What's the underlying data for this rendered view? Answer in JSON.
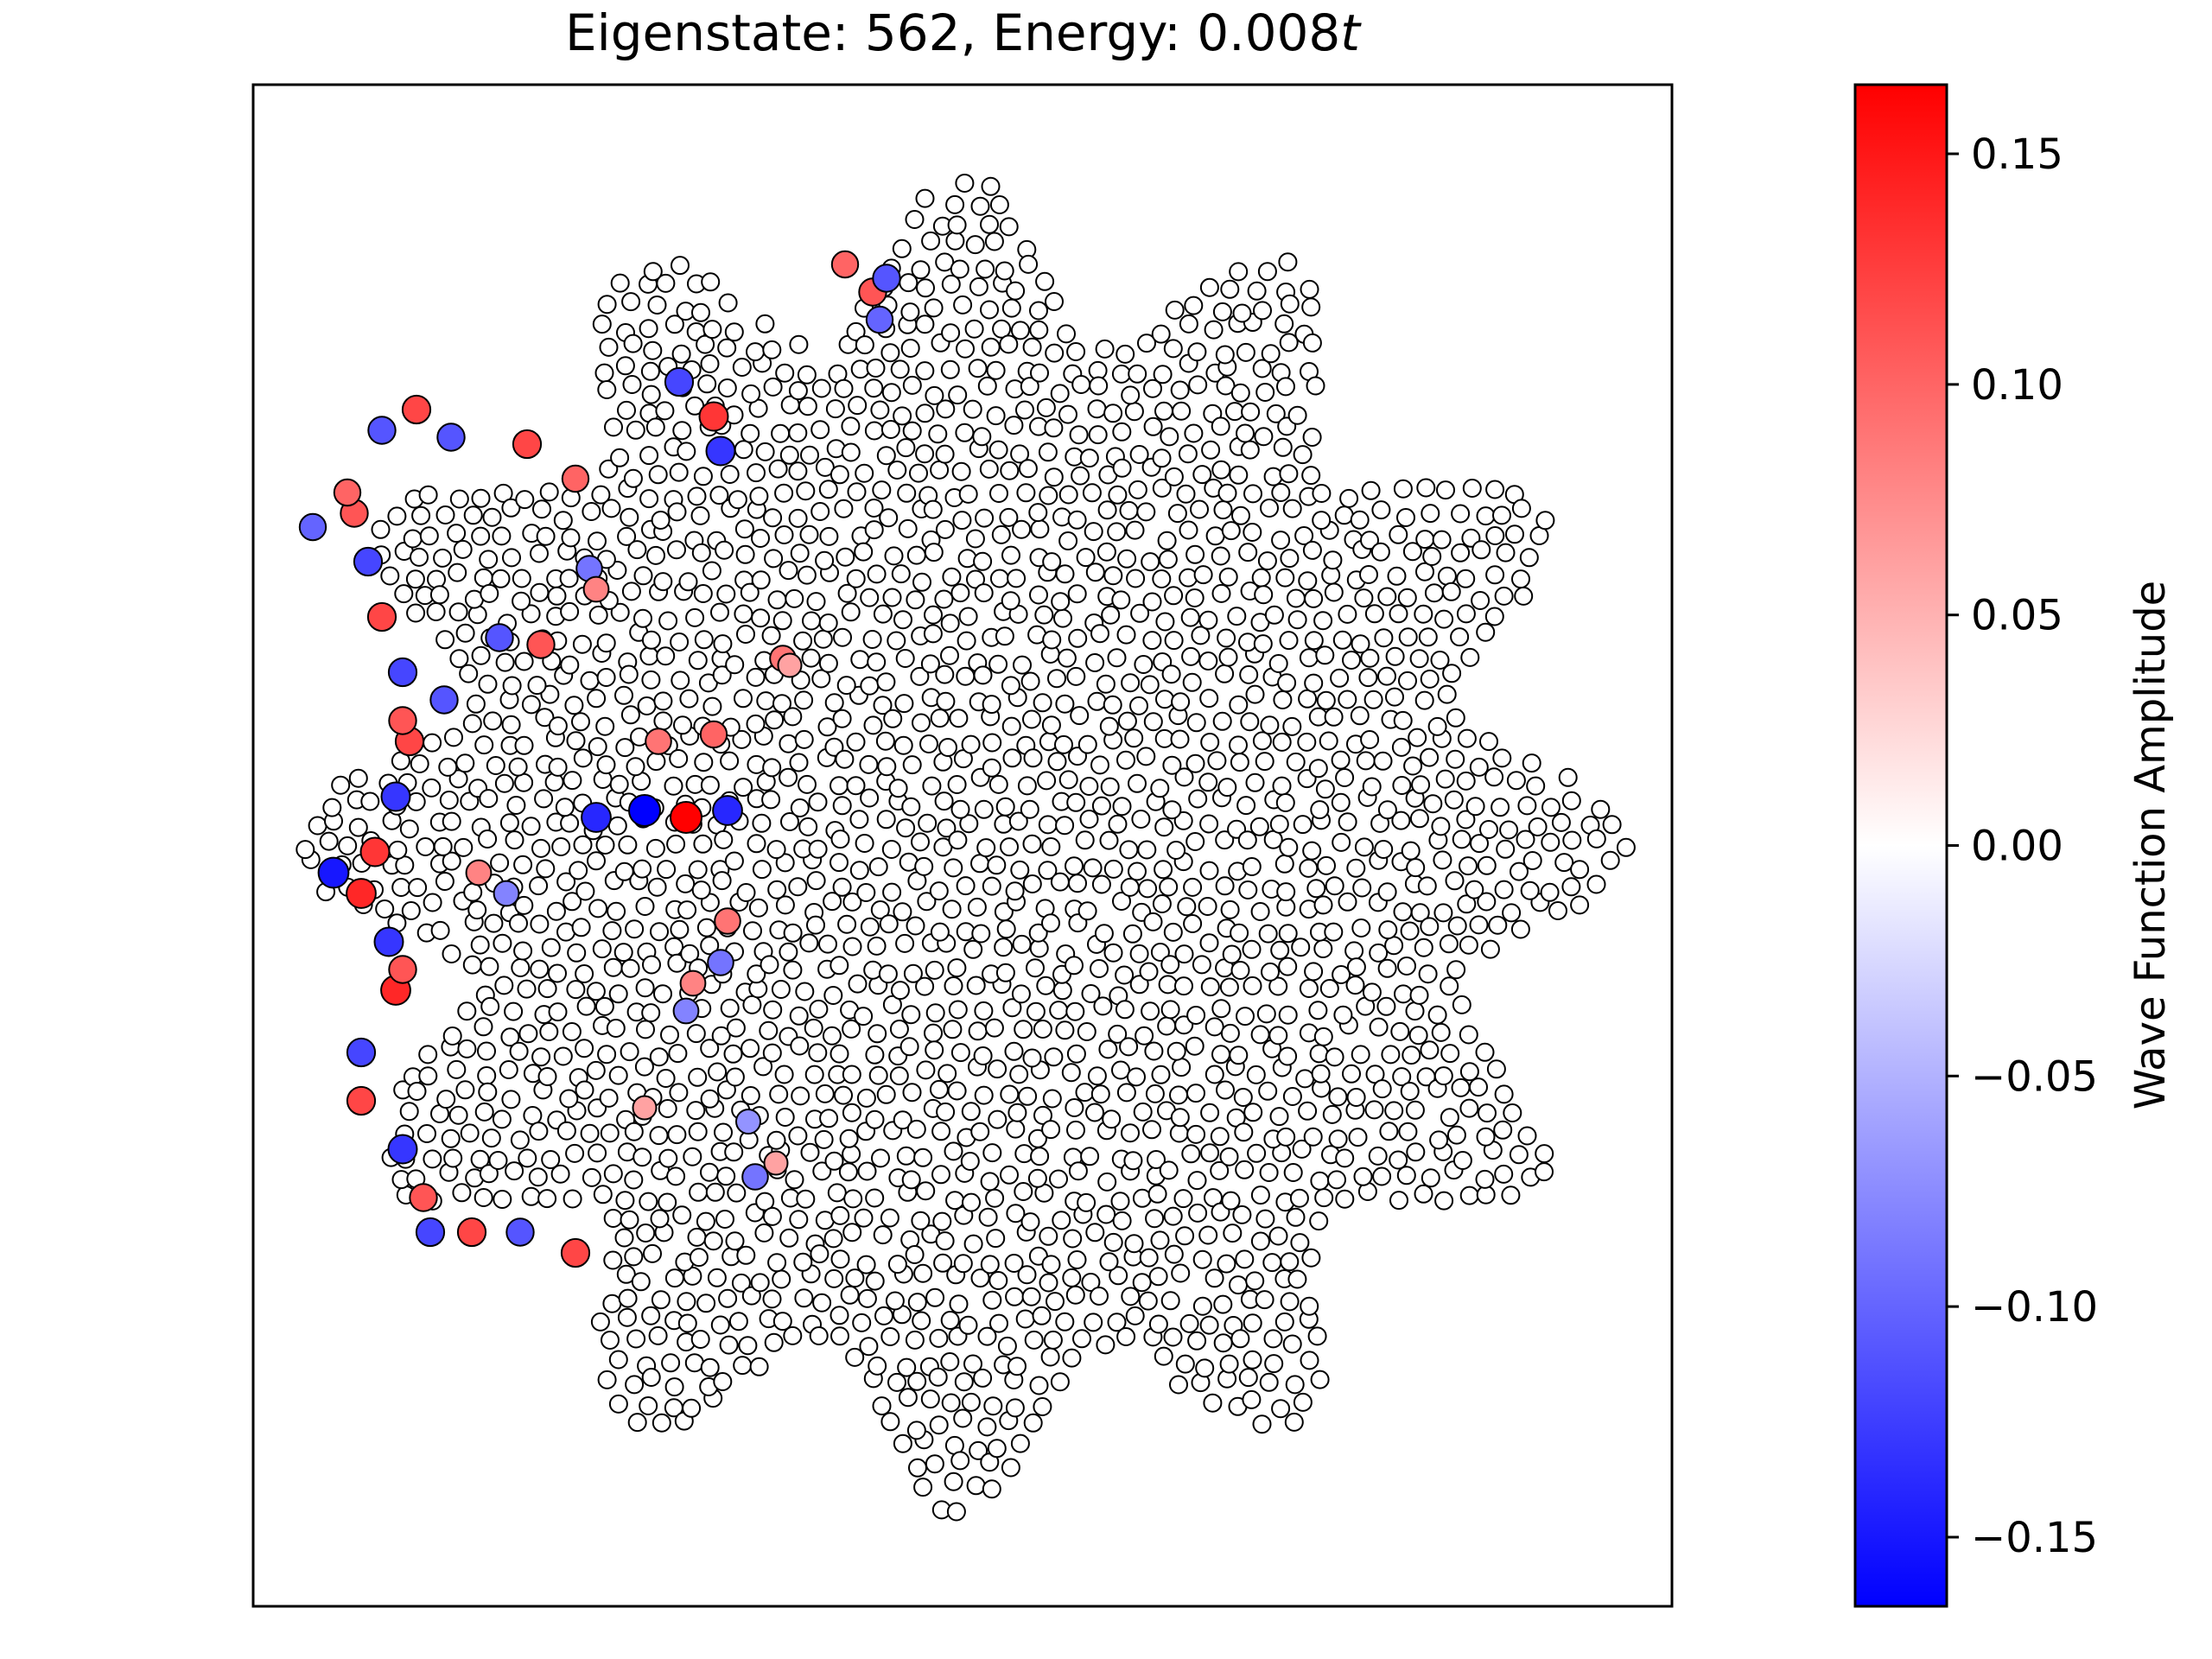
{
  "chart_data": {
    "type": "scatter",
    "title_prefix": "Eigenstate: 562, Energy: 0.008",
    "title_suffix": "t",
    "axes": {
      "xticks": "none",
      "yticks": "none",
      "grid": false,
      "frame": true
    },
    "lattice": "quasicrystal ring lattice (12-fold outline)",
    "colormap": {
      "name": "bwr",
      "low": "#0000ff",
      "mid": "#ffffff",
      "high": "#ff0000"
    },
    "colorbar": {
      "label": "Wave Function Amplitude",
      "vmin": -0.165,
      "vmax": 0.165,
      "ticks": [
        0.15,
        0.1,
        0.05,
        0.0,
        -0.05,
        -0.1,
        -0.15
      ],
      "tick_labels": [
        "0.15",
        "0.10",
        "0.05",
        "0.00",
        "−0.05",
        "−0.10",
        "−0.15"
      ]
    },
    "highlighted_sites": [
      {
        "x": -0.46,
        "y": 0.05,
        "amplitude": -0.165
      },
      {
        "x": -0.4,
        "y": 0.04,
        "amplitude": 0.165
      },
      {
        "x": -0.34,
        "y": 0.05,
        "amplitude": -0.14
      },
      {
        "x": -0.53,
        "y": 0.04,
        "amplitude": -0.14
      },
      {
        "x": -0.91,
        "y": -0.04,
        "amplitude": -0.15
      },
      {
        "x": -0.85,
        "y": -0.01,
        "amplitude": 0.13
      },
      {
        "x": -0.87,
        "y": -0.07,
        "amplitude": 0.14
      },
      {
        "x": -0.83,
        "y": -0.14,
        "amplitude": -0.13
      },
      {
        "x": -0.82,
        "y": -0.21,
        "amplitude": 0.14
      },
      {
        "x": -0.81,
        "y": -0.18,
        "amplitude": 0.11
      },
      {
        "x": -0.87,
        "y": -0.3,
        "amplitude": -0.12
      },
      {
        "x": -0.87,
        "y": -0.37,
        "amplitude": 0.12
      },
      {
        "x": -0.81,
        "y": -0.44,
        "amplitude": -0.13
      },
      {
        "x": -0.78,
        "y": -0.51,
        "amplitude": 0.11
      },
      {
        "x": -0.77,
        "y": -0.56,
        "amplitude": -0.12
      },
      {
        "x": -0.71,
        "y": -0.56,
        "amplitude": 0.12
      },
      {
        "x": -0.64,
        "y": -0.56,
        "amplitude": -0.11
      },
      {
        "x": -0.56,
        "y": -0.59,
        "amplitude": 0.12
      },
      {
        "x": -0.82,
        "y": 0.07,
        "amplitude": -0.13
      },
      {
        "x": -0.8,
        "y": 0.15,
        "amplitude": 0.12
      },
      {
        "x": -0.81,
        "y": 0.18,
        "amplitude": 0.11
      },
      {
        "x": -0.81,
        "y": 0.25,
        "amplitude": -0.12
      },
      {
        "x": -0.84,
        "y": 0.33,
        "amplitude": 0.12
      },
      {
        "x": -0.86,
        "y": 0.41,
        "amplitude": -0.12
      },
      {
        "x": -0.88,
        "y": 0.48,
        "amplitude": 0.11
      },
      {
        "x": -0.94,
        "y": 0.46,
        "amplitude": -0.1
      },
      {
        "x": -0.89,
        "y": 0.51,
        "amplitude": 0.1
      },
      {
        "x": -0.84,
        "y": 0.6,
        "amplitude": -0.11
      },
      {
        "x": -0.79,
        "y": 0.63,
        "amplitude": 0.12
      },
      {
        "x": -0.74,
        "y": 0.59,
        "amplitude": -0.11
      },
      {
        "x": -0.63,
        "y": 0.58,
        "amplitude": 0.12
      },
      {
        "x": -0.56,
        "y": 0.53,
        "amplitude": 0.1
      },
      {
        "x": -0.36,
        "y": 0.62,
        "amplitude": 0.13
      },
      {
        "x": -0.35,
        "y": 0.57,
        "amplitude": -0.13
      },
      {
        "x": -0.41,
        "y": 0.67,
        "amplitude": -0.12
      },
      {
        "x": -0.13,
        "y": 0.8,
        "amplitude": 0.11
      },
      {
        "x": -0.11,
        "y": 0.82,
        "amplitude": -0.11
      },
      {
        "x": -0.17,
        "y": 0.84,
        "amplitude": 0.1
      },
      {
        "x": -0.12,
        "y": 0.76,
        "amplitude": -0.1
      },
      {
        "x": -0.67,
        "y": 0.3,
        "amplitude": -0.11
      },
      {
        "x": -0.61,
        "y": 0.29,
        "amplitude": 0.11
      },
      {
        "x": -0.75,
        "y": 0.21,
        "amplitude": -0.11
      },
      {
        "x": -0.44,
        "y": 0.15,
        "amplitude": 0.09
      },
      {
        "x": -0.36,
        "y": 0.16,
        "amplitude": 0.1
      },
      {
        "x": -0.34,
        "y": -0.11,
        "amplitude": 0.09
      },
      {
        "x": -0.35,
        "y": -0.17,
        "amplitude": -0.09
      },
      {
        "x": -0.39,
        "y": -0.2,
        "amplitude": 0.08
      },
      {
        "x": -0.4,
        "y": -0.24,
        "amplitude": -0.08
      },
      {
        "x": -0.7,
        "y": -0.04,
        "amplitude": 0.08
      },
      {
        "x": -0.66,
        "y": -0.07,
        "amplitude": -0.08
      },
      {
        "x": -0.26,
        "y": 0.27,
        "amplitude": 0.09
      },
      {
        "x": -0.25,
        "y": 0.26,
        "amplitude": 0.06
      },
      {
        "x": -0.54,
        "y": 0.4,
        "amplitude": -0.09
      },
      {
        "x": -0.53,
        "y": 0.37,
        "amplitude": 0.08
      },
      {
        "x": -0.31,
        "y": -0.4,
        "amplitude": -0.07
      },
      {
        "x": -0.3,
        "y": -0.48,
        "amplitude": -0.09
      },
      {
        "x": -0.27,
        "y": -0.46,
        "amplitude": 0.06
      },
      {
        "x": -0.46,
        "y": -0.38,
        "amplitude": 0.06
      }
    ]
  }
}
